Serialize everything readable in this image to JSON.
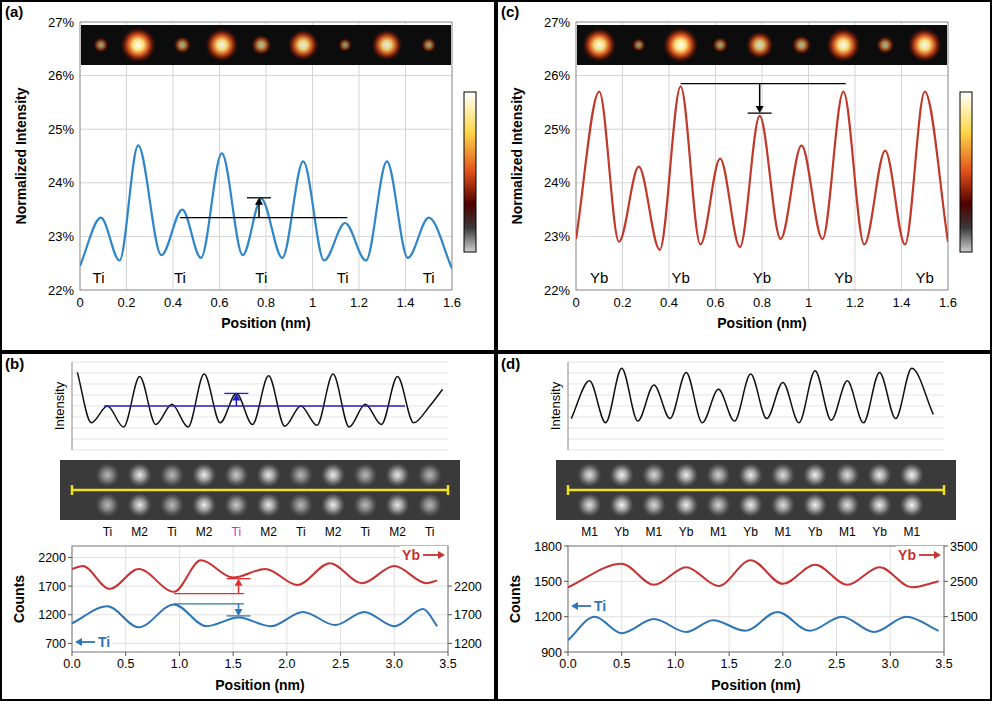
{
  "chart_data": [
    {
      "panel_label": "(a)",
      "type": "line",
      "x_label": "Position (nm)",
      "y_label": "Normalized Intensity",
      "x": [
        0,
        0.09,
        0.17,
        0.25,
        0.35,
        0.44,
        0.52,
        0.61,
        0.7,
        0.78,
        0.87,
        0.96,
        1.05,
        1.14,
        1.23,
        1.32,
        1.41,
        1.5,
        1.6
      ],
      "series": [
        {
          "color": "#2f86c8",
          "values": [
            22.45,
            23.35,
            22.55,
            24.7,
            22.65,
            23.5,
            22.6,
            24.55,
            22.65,
            23.7,
            22.6,
            24.4,
            22.55,
            23.25,
            22.55,
            24.4,
            22.6,
            23.35,
            22.4
          ]
        }
      ],
      "xlim": [
        0,
        1.6
      ],
      "ylim": [
        22,
        27
      ],
      "xticks": [
        0,
        0.2,
        0.4,
        0.6,
        0.8,
        1,
        1.2,
        1.4,
        1.6
      ],
      "yticks": [
        {
          "value": 22,
          "label": "22%"
        },
        {
          "value": 23,
          "label": "23%"
        },
        {
          "value": 24,
          "label": "24%"
        },
        {
          "value": 25,
          "label": "25%"
        },
        {
          "value": 26,
          "label": "26%"
        },
        {
          "value": 27,
          "label": "27%"
        }
      ],
      "grid": true,
      "atom_labels": {
        "labels": [
          "Ti",
          "Ti",
          "Ti",
          "Ti",
          "Ti"
        ],
        "x": [
          0.08,
          0.43,
          0.78,
          1.13,
          1.5
        ]
      },
      "annotation": {
        "x_start": 0.43,
        "x_end": 1.15,
        "y_start": 23.35,
        "x_arrow": 0.77,
        "y_end": 23.72,
        "color": "#000000"
      }
    },
    {
      "panel_label": "(b)",
      "type": "line",
      "x_label": "Position (nm)",
      "y_label": "Counts",
      "intensity_profile": {
        "y_label": "Intensity",
        "x": [
          0.05,
          0.18,
          0.33,
          0.48,
          0.63,
          0.78,
          0.93,
          1.08,
          1.23,
          1.38,
          1.53,
          1.68,
          1.83,
          1.98,
          2.13,
          2.28,
          2.43,
          2.58,
          2.73,
          2.88,
          3.03,
          3.18,
          3.33,
          3.45
        ],
        "values": [
          90,
          30,
          50,
          25,
          85,
          28,
          52,
          25,
          88,
          30,
          65,
          28,
          86,
          26,
          50,
          27,
          88,
          25,
          52,
          28,
          85,
          30,
          50,
          70
        ],
        "ylim": [
          0,
          100
        ],
        "annotation": {
          "x_start": 0.3,
          "x_end": 3.1,
          "y_start": 50,
          "x_arrow": 1.53,
          "y_end": 65,
          "color": "#2020c0"
        }
      },
      "column_labels": {
        "labels": [
          "Ti",
          "M2",
          "Ti",
          "M2",
          "Ti",
          "M2",
          "Ti",
          "M2",
          "Ti",
          "M2",
          "Ti"
        ],
        "x": [
          0.33,
          0.63,
          0.93,
          1.23,
          1.53,
          1.83,
          2.13,
          2.43,
          2.73,
          3.03,
          3.33
        ],
        "colors": [
          "#000000",
          "#000000",
          "#000000",
          "#000000",
          "#e020e0",
          "#000000",
          "#000000",
          "#000000",
          "#000000",
          "#000000",
          "#000000"
        ]
      },
      "series": [
        {
          "name": "Yb",
          "color": "#c83232",
          "axis": "y2",
          "x": [
            0,
            0.1,
            0.35,
            0.62,
            0.95,
            1.2,
            1.5,
            1.8,
            2.1,
            2.4,
            2.7,
            3.0,
            3.3,
            3.4
          ],
          "values": [
            2500,
            2550,
            2150,
            2500,
            2100,
            2650,
            2350,
            2500,
            2220,
            2600,
            2250,
            2550,
            2250,
            2300
          ]
        },
        {
          "name": "Ti",
          "color": "#2e75b6",
          "x": [
            0,
            0.33,
            0.62,
            0.95,
            1.25,
            1.55,
            1.85,
            2.15,
            2.45,
            2.72,
            3.0,
            3.27,
            3.4
          ],
          "values": [
            1050,
            1350,
            980,
            1380,
            1000,
            1150,
            1000,
            1250,
            1020,
            1250,
            1000,
            1300,
            1000
          ]
        }
      ],
      "xlim": [
        0,
        3.5
      ],
      "ylim": [
        550,
        2400
      ],
      "y2lim": [
        1050,
        2900
      ],
      "xticks": [
        {
          "value": 0,
          "label": "0.0"
        },
        0.5,
        {
          "value": 1,
          "label": "1.0"
        },
        1.5,
        {
          "value": 2,
          "label": "2.0"
        },
        2.5,
        {
          "value": 3,
          "label": "3.0"
        },
        3.5
      ],
      "yticks": [
        700,
        1200,
        1700,
        2200
      ],
      "y2ticks": [
        1200,
        1700,
        2200
      ],
      "grid": true,
      "annotations": [
        {
          "axis": "y2",
          "x_start": 0.95,
          "x_end": 1.6,
          "y_start": 2070,
          "x_arrow": 1.55,
          "y_end": 2330,
          "color": "#e03030"
        },
        {
          "x_start": 0.95,
          "x_end": 1.6,
          "y_start": 1390,
          "x_arrow": 1.55,
          "y_end": 1180,
          "color": "#2e75b6"
        }
      ]
    },
    {
      "panel_label": "(c)",
      "type": "line",
      "x_label": "Position (nm)",
      "y_label": "Normalized Intensity",
      "x": [
        0,
        0.1,
        0.185,
        0.27,
        0.36,
        0.45,
        0.535,
        0.62,
        0.705,
        0.79,
        0.88,
        0.97,
        1.06,
        1.15,
        1.24,
        1.33,
        1.415,
        1.5,
        1.6
      ],
      "series": [
        {
          "color": "#c0392b",
          "values": [
            22.95,
            25.7,
            22.9,
            24.3,
            22.75,
            25.8,
            22.85,
            24.45,
            22.8,
            25.25,
            22.95,
            24.7,
            22.95,
            25.7,
            22.85,
            24.6,
            22.85,
            25.7,
            22.9
          ]
        }
      ],
      "xlim": [
        0,
        1.6
      ],
      "ylim": [
        22,
        27
      ],
      "xticks": [
        0,
        0.2,
        0.4,
        0.6,
        0.8,
        1,
        1.2,
        1.4,
        1.6
      ],
      "yticks": [
        {
          "value": 22,
          "label": "22%"
        },
        {
          "value": 23,
          "label": "23%"
        },
        {
          "value": 24,
          "label": "24%"
        },
        {
          "value": 25,
          "label": "25%"
        },
        {
          "value": 26,
          "label": "26%"
        },
        {
          "value": 27,
          "label": "27%"
        }
      ],
      "grid": true,
      "atom_labels": {
        "labels": [
          "Yb",
          "Yb",
          "Yb",
          "Yb",
          "Yb"
        ],
        "x": [
          0.1,
          0.45,
          0.8,
          1.15,
          1.5
        ]
      },
      "annotation": {
        "x_start": 0.45,
        "x_end": 1.16,
        "y_start": 25.85,
        "x_arrow": 0.79,
        "y_end": 25.3,
        "color": "#000000"
      }
    },
    {
      "panel_label": "(d)",
      "type": "line",
      "x_label": "Position (nm)",
      "y_label": "Counts",
      "intensity_profile": {
        "y_label": "Intensity",
        "x": [
          0.03,
          0.2,
          0.35,
          0.5,
          0.65,
          0.8,
          0.95,
          1.1,
          1.25,
          1.4,
          1.55,
          1.7,
          1.85,
          2.0,
          2.15,
          2.3,
          2.45,
          2.6,
          2.75,
          2.9,
          3.05,
          3.2,
          3.4
        ],
        "values": [
          35,
          80,
          30,
          95,
          32,
          75,
          35,
          90,
          30,
          70,
          32,
          88,
          35,
          78,
          30,
          92,
          33,
          80,
          30,
          90,
          35,
          95,
          40
        ],
        "ylim": [
          0,
          100
        ]
      },
      "column_labels": {
        "labels": [
          "M1",
          "Yb",
          "M1",
          "Yb",
          "M1",
          "Yb",
          "M1",
          "Yb",
          "M1",
          "Yb",
          "M1"
        ],
        "x": [
          0.2,
          0.5,
          0.8,
          1.1,
          1.4,
          1.7,
          2.0,
          2.3,
          2.6,
          2.9,
          3.2
        ]
      },
      "series": [
        {
          "name": "Yb",
          "color": "#c83232",
          "axis": "y2",
          "x": [
            0,
            0.5,
            0.8,
            1.1,
            1.4,
            1.7,
            2.0,
            2.3,
            2.6,
            2.9,
            3.2,
            3.45
          ],
          "values": [
            2330,
            3000,
            2400,
            2900,
            2370,
            3100,
            2430,
            2970,
            2400,
            2900,
            2330,
            2500
          ]
        },
        {
          "name": "Ti",
          "color": "#2e75b6",
          "x": [
            0,
            0.25,
            0.5,
            0.8,
            1.1,
            1.35,
            1.65,
            1.95,
            2.25,
            2.55,
            2.85,
            3.15,
            3.45
          ],
          "values": [
            1000,
            1200,
            1060,
            1180,
            1070,
            1170,
            1080,
            1240,
            1080,
            1200,
            1070,
            1200,
            1080
          ]
        }
      ],
      "xlim": [
        0,
        3.5
      ],
      "ylim": [
        900,
        1800
      ],
      "y2lim": [
        500,
        3500
      ],
      "xticks": [
        {
          "value": 0,
          "label": "0.0"
        },
        0.5,
        {
          "value": 1,
          "label": "1.0"
        },
        1.5,
        {
          "value": 2,
          "label": "2.0"
        },
        2.5,
        {
          "value": 3,
          "label": "3.0"
        },
        3.5
      ],
      "yticks": [
        900,
        1200,
        1500,
        1800
      ],
      "y2ticks": [
        1500,
        2500,
        3500
      ],
      "grid": true
    }
  ]
}
